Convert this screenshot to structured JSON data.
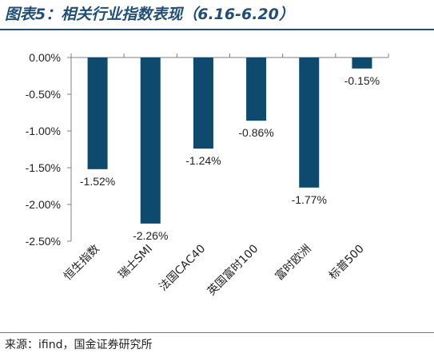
{
  "title": "图表5：相关行业指数表现（6.16-6.20）",
  "source": "来源：ifind，国金证券研究所",
  "colors": {
    "bar": "#0d4a6e",
    "title": "#1f4e79"
  },
  "chart_data": {
    "type": "bar",
    "categories": [
      "恒生指数",
      "瑞士SMI",
      "法国CAC40",
      "英国富时100",
      "富时欧洲",
      "标普500"
    ],
    "values": [
      -1.52,
      -2.26,
      -1.24,
      -0.86,
      -1.77,
      -0.15
    ],
    "value_labels": [
      "-1.52%",
      "-2.26%",
      "-1.24%",
      "-0.86%",
      "-1.77%",
      "-0.15%"
    ],
    "ylim": [
      -2.5,
      0
    ],
    "yticks": [
      0,
      -0.5,
      -1.0,
      -1.5,
      -2.0,
      -2.5
    ],
    "ytick_labels": [
      "0.00%",
      "-0.50%",
      "-1.00%",
      "-1.50%",
      "-2.00%",
      "-2.50%"
    ],
    "grid": false,
    "legend": "none"
  }
}
